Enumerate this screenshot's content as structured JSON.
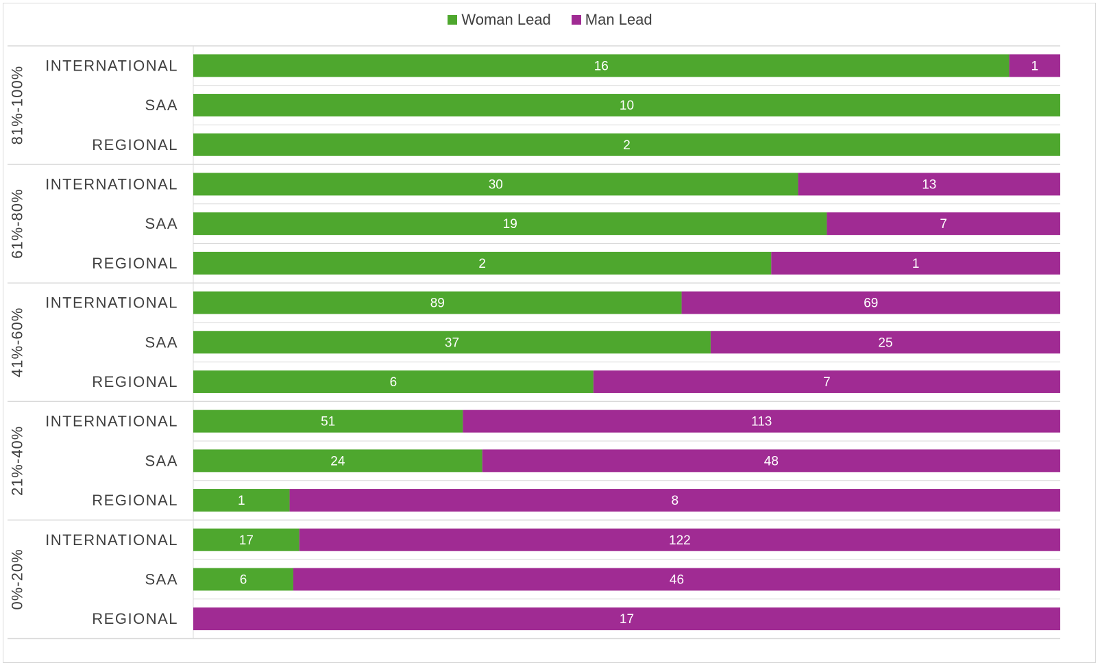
{
  "chart_data": {
    "type": "bar",
    "orientation": "horizontal",
    "stacking": "percent",
    "legend_position": "top",
    "colors": {
      "woman": "#4ea72e",
      "man": "#a02b93"
    },
    "series": [
      {
        "name": "Woman Lead",
        "key": "woman"
      },
      {
        "name": "Man Lead",
        "key": "man"
      }
    ],
    "groups": [
      {
        "label": "81%-100%",
        "rows": [
          {
            "category": "INTERNATIONAL",
            "woman": 16,
            "man": 1
          },
          {
            "category": "SAA",
            "woman": 10,
            "man": 0
          },
          {
            "category": "REGIONAL",
            "woman": 2,
            "man": 0
          }
        ]
      },
      {
        "label": "61%-80%",
        "rows": [
          {
            "category": "INTERNATIONAL",
            "woman": 30,
            "man": 13
          },
          {
            "category": "SAA",
            "woman": 19,
            "man": 7
          },
          {
            "category": "REGIONAL",
            "woman": 2,
            "man": 1
          }
        ]
      },
      {
        "label": "41%-60%",
        "rows": [
          {
            "category": "INTERNATIONAL",
            "woman": 89,
            "man": 69
          },
          {
            "category": "SAA",
            "woman": 37,
            "man": 25
          },
          {
            "category": "REGIONAL",
            "woman": 6,
            "man": 7
          }
        ]
      },
      {
        "label": "21%-40%",
        "rows": [
          {
            "category": "INTERNATIONAL",
            "woman": 51,
            "man": 113
          },
          {
            "category": "SAA",
            "woman": 24,
            "man": 48
          },
          {
            "category": "REGIONAL",
            "woman": 1,
            "man": 8
          }
        ]
      },
      {
        "label": "0%-20%",
        "rows": [
          {
            "category": "INTERNATIONAL",
            "woman": 17,
            "man": 122
          },
          {
            "category": "SAA",
            "woman": 6,
            "man": 46
          },
          {
            "category": "REGIONAL",
            "woman": 0,
            "man": 17
          }
        ]
      }
    ]
  }
}
